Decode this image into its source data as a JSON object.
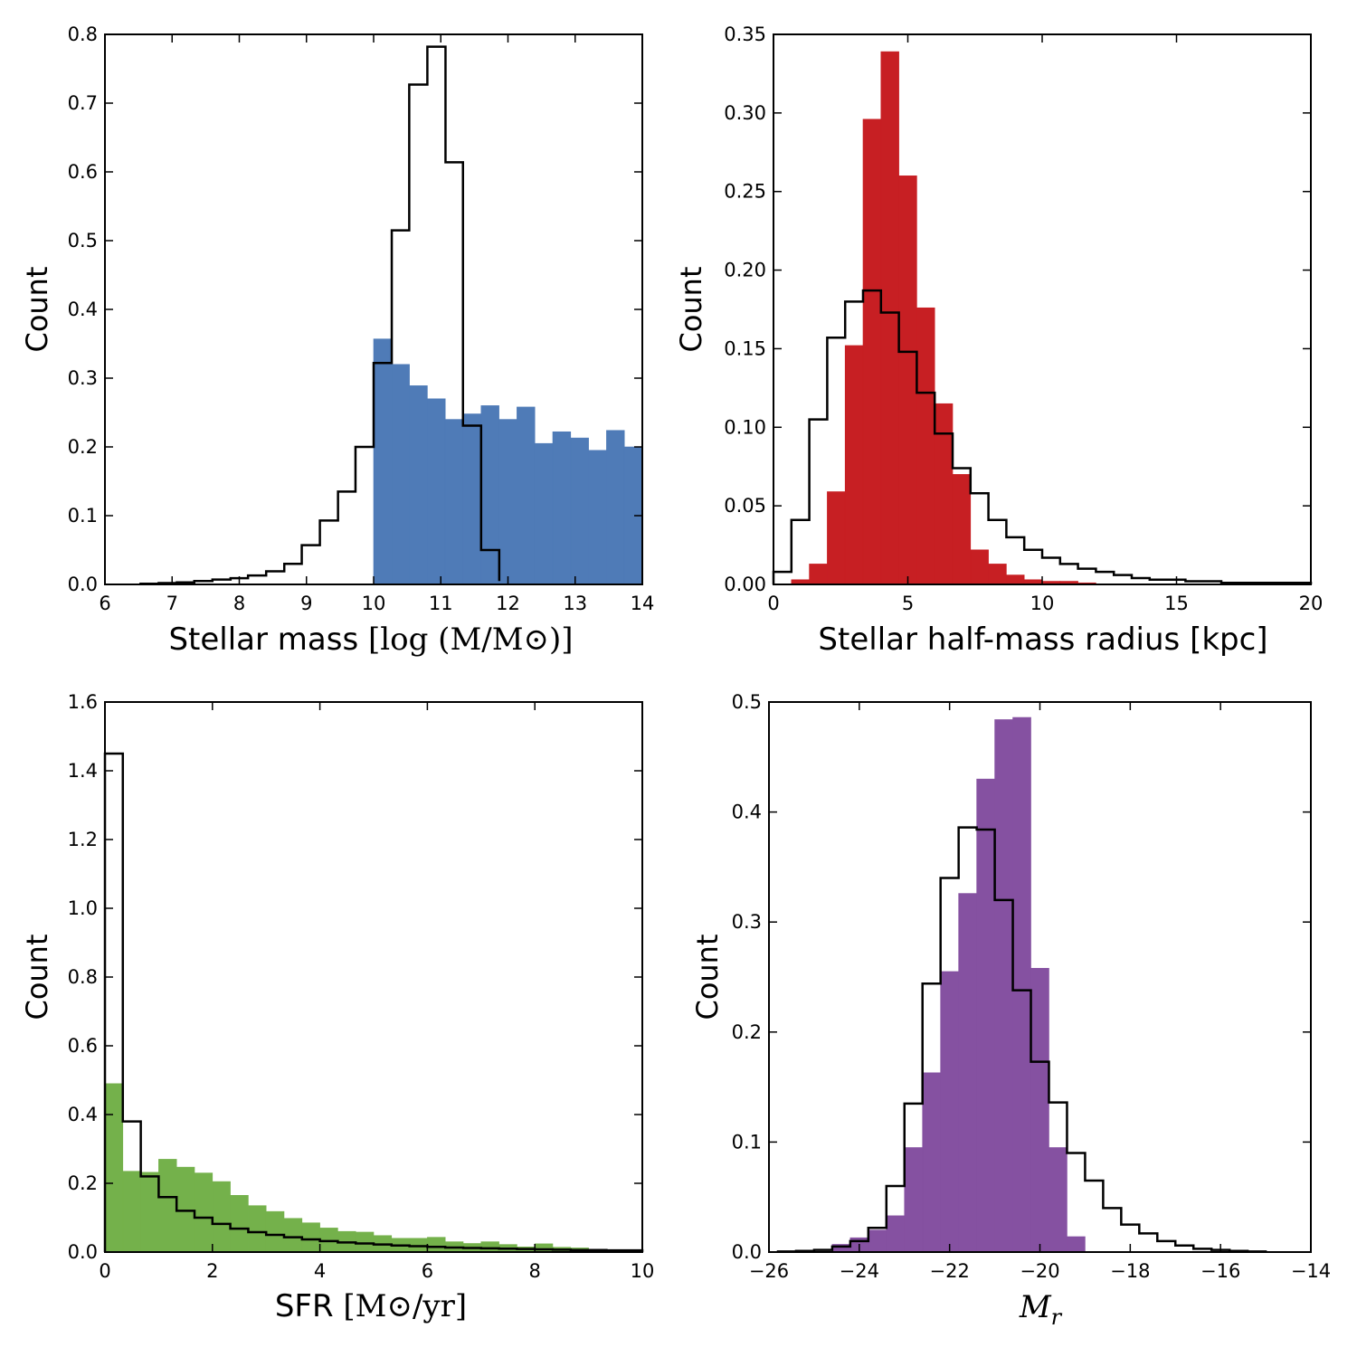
{
  "colors": {
    "blue": "#4f7bb7",
    "red": "#c71f23",
    "green": "#74b14b",
    "purple": "#8551a1",
    "outline": "#000000"
  },
  "chart_data": [
    {
      "type": "bar",
      "histtype": "filled + step outline",
      "xlabel": "Stellar mass",
      "xlabel_math": "[log (M/M⊙)]",
      "ylabel": "Count",
      "xlim": [
        6,
        14
      ],
      "ylim": [
        0,
        0.8
      ],
      "xticks": [
        "6",
        "7",
        "8",
        "9",
        "10",
        "11",
        "12",
        "13",
        "14"
      ],
      "yticks": [
        "0.0",
        "0.1",
        "0.2",
        "0.3",
        "0.4",
        "0.5",
        "0.6",
        "0.7",
        "0.8"
      ],
      "fill_color": "#4f7bb7",
      "filled": {
        "bin_edges": [
          10.0,
          10.2667,
          10.5333,
          10.8,
          11.0667,
          11.3333,
          11.6,
          11.8667,
          12.1333,
          12.4,
          12.6667,
          12.9333,
          13.2,
          13.4667,
          13.7333,
          14.0
        ],
        "values": [
          0.357,
          0.32,
          0.289,
          0.27,
          0.24,
          0.248,
          0.26,
          0.24,
          0.258,
          0.205,
          0.222,
          0.213,
          0.195,
          0.224,
          0.2
        ]
      },
      "outline": {
        "bin_edges": [
          6.53,
          6.8,
          7.07,
          7.33,
          7.6,
          7.87,
          8.13,
          8.4,
          8.67,
          8.93,
          9.2,
          9.47,
          9.73,
          10.0,
          10.27,
          10.53,
          10.8,
          11.07,
          11.33,
          11.6,
          11.87
        ],
        "values": [
          0.001,
          0.002,
          0.003,
          0.005,
          0.007,
          0.009,
          0.013,
          0.019,
          0.03,
          0.057,
          0.093,
          0.135,
          0.2,
          0.322,
          0.515,
          0.727,
          0.782,
          0.614,
          0.231,
          0.05,
          0.005
        ]
      }
    },
    {
      "type": "bar",
      "histtype": "filled + step outline",
      "xlabel": "Stellar half-mass radius [kpc]",
      "ylabel": "Count",
      "xlim": [
        0,
        20
      ],
      "ylim": [
        0,
        0.35
      ],
      "xticks": [
        "0",
        "5",
        "10",
        "15",
        "20"
      ],
      "yticks": [
        "0.00",
        "0.05",
        "0.10",
        "0.15",
        "0.20",
        "0.25",
        "0.30",
        "0.35"
      ],
      "fill_color": "#c71f23",
      "filled": {
        "bin_edges": [
          0.667,
          1.333,
          2.0,
          2.667,
          3.333,
          4.0,
          4.667,
          5.333,
          6.0,
          6.667,
          7.333,
          8.0,
          8.667,
          9.333,
          10.0,
          10.667,
          11.333,
          12.0
        ],
        "values": [
          0.003,
          0.013,
          0.059,
          0.152,
          0.296,
          0.339,
          0.26,
          0.176,
          0.115,
          0.07,
          0.022,
          0.013,
          0.006,
          0.003,
          0.002,
          0.002,
          0.001
        ]
      },
      "outline": {
        "bin_edges": [
          0.0,
          0.667,
          1.333,
          2.0,
          2.667,
          3.333,
          4.0,
          4.667,
          5.333,
          6.0,
          6.667,
          7.333,
          8.0,
          8.667,
          9.333,
          10.0,
          10.667,
          11.333,
          12.0,
          12.667,
          13.333,
          14.0,
          14.667,
          15.333,
          16.0,
          16.667,
          17.333,
          18.0,
          18.667,
          19.333,
          20.0
        ],
        "values": [
          0.008,
          0.041,
          0.105,
          0.157,
          0.18,
          0.187,
          0.173,
          0.148,
          0.122,
          0.096,
          0.074,
          0.058,
          0.041,
          0.03,
          0.022,
          0.017,
          0.013,
          0.01,
          0.008,
          0.006,
          0.004,
          0.003,
          0.003,
          0.002,
          0.002,
          0.001,
          0.001,
          0.001,
          0.001,
          0.001
        ]
      }
    },
    {
      "type": "bar",
      "histtype": "filled + step outline",
      "xlabel": "SFR",
      "xlabel_math": "[M⊙/yr]",
      "ylabel": "Count",
      "xlim": [
        0,
        10
      ],
      "ylim": [
        0,
        1.6
      ],
      "xticks": [
        "0",
        "2",
        "4",
        "6",
        "8",
        "10"
      ],
      "yticks": [
        "0.0",
        "0.2",
        "0.4",
        "0.6",
        "0.8",
        "1.0",
        "1.2",
        "1.4",
        "1.6"
      ],
      "fill_color": "#74b14b",
      "filled": {
        "bin_edges": [
          0.0,
          0.333,
          0.667,
          1.0,
          1.333,
          1.667,
          2.0,
          2.333,
          2.667,
          3.0,
          3.333,
          3.667,
          4.0,
          4.333,
          4.667,
          5.0,
          5.333,
          5.667,
          6.0,
          6.333,
          6.667,
          7.0,
          7.333,
          7.667,
          8.0,
          8.333,
          8.667,
          9.0,
          9.333,
          9.667,
          10.0
        ],
        "values": [
          0.49,
          0.235,
          0.232,
          0.27,
          0.247,
          0.23,
          0.205,
          0.165,
          0.135,
          0.118,
          0.098,
          0.085,
          0.07,
          0.06,
          0.058,
          0.048,
          0.04,
          0.04,
          0.043,
          0.03,
          0.025,
          0.03,
          0.022,
          0.015,
          0.024,
          0.014,
          0.012,
          0.008,
          0.006,
          0.004
        ]
      },
      "outline": {
        "bin_edges": [
          0.0,
          0.333,
          0.667,
          1.0,
          1.333,
          1.667,
          2.0,
          2.333,
          2.667,
          3.0,
          3.333,
          3.667,
          4.0,
          4.333,
          4.667,
          5.0,
          5.333,
          5.667,
          6.0,
          6.333,
          6.667,
          7.0,
          7.333,
          7.667,
          8.0,
          8.333,
          8.667,
          9.0,
          9.333,
          9.667,
          10.0
        ],
        "values": [
          1.45,
          0.38,
          0.22,
          0.16,
          0.12,
          0.1,
          0.082,
          0.068,
          0.058,
          0.05,
          0.043,
          0.037,
          0.032,
          0.028,
          0.025,
          0.022,
          0.019,
          0.017,
          0.015,
          0.013,
          0.012,
          0.011,
          0.01,
          0.009,
          0.008,
          0.007,
          0.006,
          0.006,
          0.005,
          0.005
        ]
      }
    },
    {
      "type": "bar",
      "histtype": "filled + step outline",
      "xlabel": "",
      "xlabel_math": "Mr",
      "ylabel": "Count",
      "xlim": [
        -26,
        -14
      ],
      "ylim": [
        0,
        0.5
      ],
      "xticks": [
        "−26",
        "−24",
        "−22",
        "−20",
        "−18",
        "−16",
        "−14"
      ],
      "yticks": [
        "0.0",
        "0.1",
        "0.2",
        "0.3",
        "0.4",
        "0.5"
      ],
      "fill_color": "#8551a1",
      "filled": {
        "bin_edges": [
          -24.6,
          -24.2,
          -23.8,
          -23.4,
          -23.0,
          -22.6,
          -22.2,
          -21.8,
          -21.4,
          -21.0,
          -20.6,
          -20.2,
          -19.8,
          -19.4,
          -19.0
        ],
        "values": [
          0.007,
          0.013,
          0.02,
          0.033,
          0.095,
          0.163,
          0.255,
          0.326,
          0.43,
          0.484,
          0.486,
          0.258,
          0.095,
          0.014
        ]
      },
      "outline": {
        "bin_edges": [
          -25.8,
          -25.4,
          -25.0,
          -24.6,
          -24.2,
          -23.8,
          -23.4,
          -23.0,
          -22.6,
          -22.2,
          -21.8,
          -21.4,
          -21.0,
          -20.6,
          -20.2,
          -19.8,
          -19.4,
          -19.0,
          -18.6,
          -18.2,
          -17.8,
          -17.4,
          -17.0,
          -16.6,
          -16.2,
          -15.8,
          -15.4,
          -15.0
        ],
        "values": [
          0.0005,
          0.001,
          0.002,
          0.005,
          0.01,
          0.022,
          0.06,
          0.135,
          0.244,
          0.34,
          0.386,
          0.384,
          0.32,
          0.238,
          0.173,
          0.136,
          0.09,
          0.065,
          0.04,
          0.025,
          0.017,
          0.01,
          0.006,
          0.003,
          0.002,
          0.001,
          0.0005
        ]
      }
    }
  ]
}
